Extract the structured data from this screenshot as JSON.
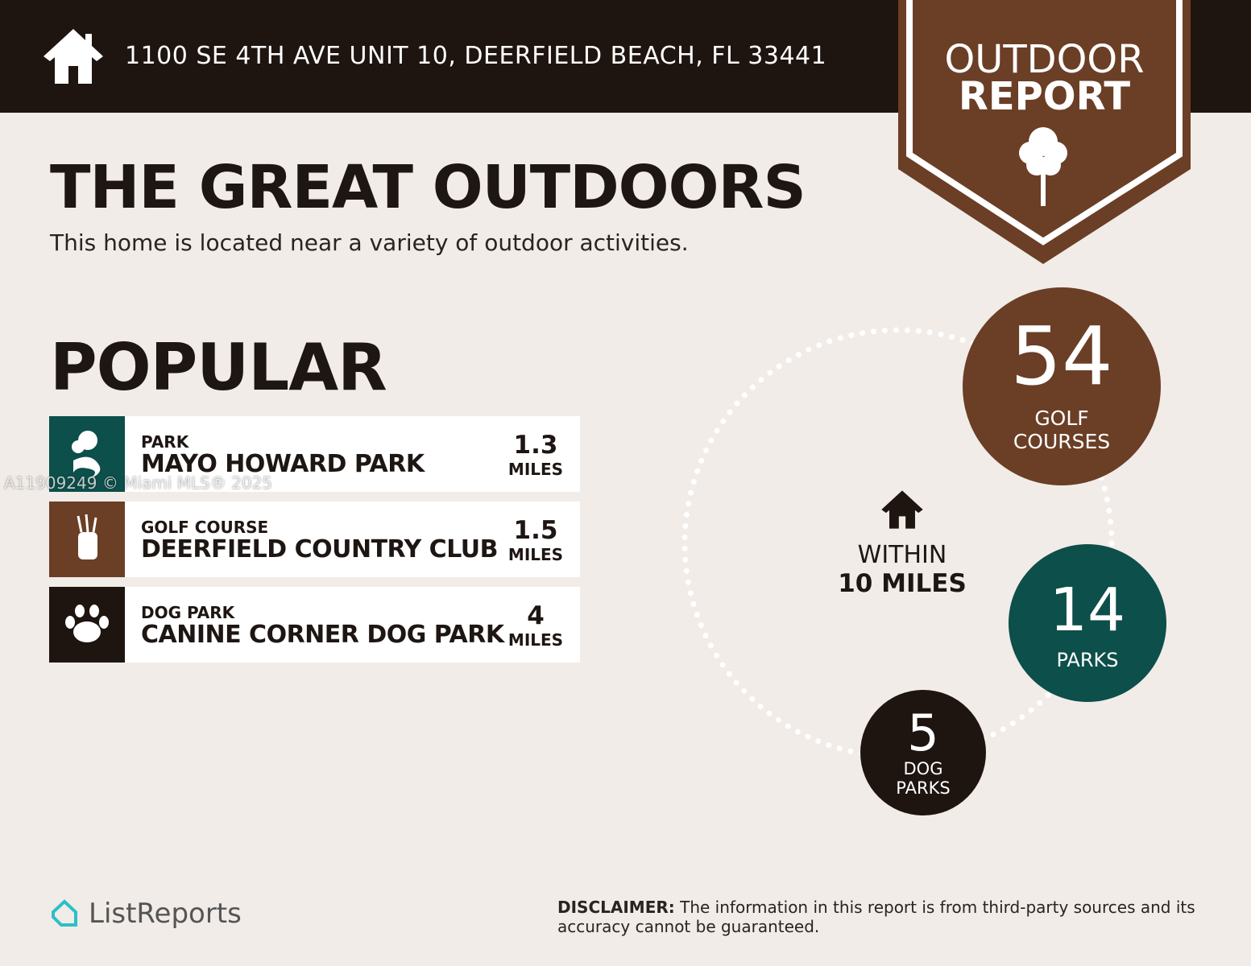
{
  "header": {
    "address": "1100 SE 4TH AVE UNIT 10, DEERFIELD BEACH, FL 33441",
    "home_icon": "house-icon"
  },
  "badge": {
    "line1": "OUTDOOR",
    "line2": "REPORT",
    "icon": "tree-icon"
  },
  "title": "THE GREAT OUTDOORS",
  "subtitle": "This home is located near a variety of outdoor activities.",
  "popular": {
    "heading": "POPULAR",
    "items": [
      {
        "category": "PARK",
        "name": "MAYO HOWARD PARK",
        "distance": "1.3",
        "unit": "MILES",
        "icon": "park-icon",
        "color": "#0d4f4a"
      },
      {
        "category": "GOLF COURSE",
        "name": "DEERFIELD COUNTRY CLUB",
        "distance": "1.5",
        "unit": "MILES",
        "icon": "golf-bag-icon",
        "color": "#6b3e26"
      },
      {
        "category": "DOG PARK",
        "name": "CANINE CORNER DOG PARK",
        "distance": "4",
        "unit": "MILES",
        "icon": "paw-icon",
        "color": "#1e1410"
      }
    ]
  },
  "watermark": "A11909249 © Miami MLS® 2025",
  "radius": {
    "line1": "WITHIN",
    "line2": "10 MILES"
  },
  "stats": [
    {
      "value": "54",
      "label1": "GOLF",
      "label2": "COURSES",
      "color": "#6b3e26"
    },
    {
      "value": "14",
      "label1": "PARKS",
      "label2": "",
      "color": "#0d4f4a"
    },
    {
      "value": "5",
      "label1": "DOG",
      "label2": "PARKS",
      "color": "#1e1410"
    }
  ],
  "footer": {
    "logo": "ListReports",
    "disclaimer_label": "DISCLAIMER:",
    "disclaimer": " The information in this report is from third-party sources and its accuracy cannot be guaranteed."
  }
}
